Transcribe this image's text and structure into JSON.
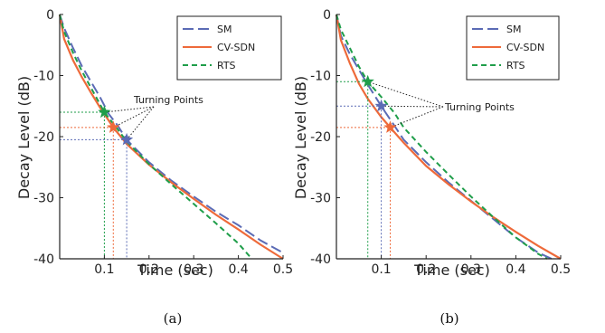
{
  "chart_data": [
    {
      "type": "line",
      "panel_label": "(a)",
      "xlabel": "Time (sec)",
      "ylabel": "Decay Level (dB)",
      "xlim": [
        0,
        0.5
      ],
      "ylim": [
        -40,
        0
      ],
      "xticks": [
        0.1,
        0.2,
        0.3,
        0.4,
        0.5
      ],
      "yticks": [
        0,
        -10,
        -20,
        -30,
        -40
      ],
      "legend": {
        "position": "top-right",
        "entries": [
          "SM",
          "CV-SDN",
          "RTS"
        ]
      },
      "annotation": "Turning Points",
      "colors": {
        "SM": "#5b6bb5",
        "CV-SDN": "#ee6a3a",
        "RTS": "#1f9e4a"
      },
      "series": [
        {
          "name": "SM",
          "style": "long-dash",
          "x": [
            0,
            0.01,
            0.03,
            0.05,
            0.07,
            0.09,
            0.11,
            0.13,
            0.15,
            0.17,
            0.2,
            0.25,
            0.3,
            0.35,
            0.4,
            0.45,
            0.5
          ],
          "y": [
            0,
            -2.2,
            -5.5,
            -8.5,
            -11,
            -13.5,
            -16.3,
            -18.2,
            -20.5,
            -22,
            -24.2,
            -27.2,
            -29.8,
            -32.3,
            -34.5,
            -37,
            -39
          ]
        },
        {
          "name": "CV-SDN",
          "style": "solid",
          "x": [
            0,
            0.01,
            0.03,
            0.05,
            0.07,
            0.09,
            0.12,
            0.15,
            0.2,
            0.25,
            0.3,
            0.35,
            0.4,
            0.45,
            0.5
          ],
          "y": [
            0,
            -4,
            -7.5,
            -10.3,
            -12.8,
            -15.2,
            -18.5,
            -21.2,
            -24.6,
            -27.5,
            -30.2,
            -32.8,
            -35.2,
            -37.7,
            -40
          ]
        },
        {
          "name": "RTS",
          "style": "dash",
          "x": [
            0,
            0.01,
            0.03,
            0.05,
            0.07,
            0.1,
            0.13,
            0.15,
            0.2,
            0.25,
            0.3,
            0.35,
            0.4,
            0.43
          ],
          "y": [
            0,
            -2.8,
            -6.3,
            -9.3,
            -12,
            -16,
            -18.8,
            -20.8,
            -24.5,
            -27.8,
            -31,
            -34.2,
            -37.5,
            -40
          ]
        }
      ],
      "turning_points": [
        {
          "series": "RTS",
          "x": 0.1,
          "y": -16
        },
        {
          "series": "CV-SDN",
          "x": 0.12,
          "y": -18.5
        },
        {
          "series": "SM",
          "x": 0.15,
          "y": -20.5
        }
      ]
    },
    {
      "type": "line",
      "panel_label": "(b)",
      "xlabel": "Time (sec)",
      "ylabel": "Decay Level (dB)",
      "xlim": [
        0,
        0.5
      ],
      "ylim": [
        -40,
        0
      ],
      "xticks": [
        0.1,
        0.2,
        0.3,
        0.4,
        0.5
      ],
      "yticks": [
        0,
        -10,
        -20,
        -30,
        -40
      ],
      "legend": {
        "position": "top-right",
        "entries": [
          "SM",
          "CV-SDN",
          "RTS"
        ]
      },
      "annotation": "Turning Points",
      "colors": {
        "SM": "#5b6bb5",
        "CV-SDN": "#ee6a3a",
        "RTS": "#1f9e4a"
      },
      "series": [
        {
          "name": "SM",
          "style": "long-dash",
          "x": [
            0,
            0.01,
            0.03,
            0.05,
            0.07,
            0.1,
            0.13,
            0.15,
            0.2,
            0.25,
            0.3,
            0.35,
            0.4,
            0.45,
            0.48
          ],
          "y": [
            0,
            -3.5,
            -6.5,
            -9,
            -11.5,
            -15,
            -18.3,
            -20.5,
            -24.2,
            -27.5,
            -30.5,
            -33.5,
            -36.5,
            -39,
            -40
          ]
        },
        {
          "name": "CV-SDN",
          "style": "solid",
          "x": [
            0,
            0.01,
            0.03,
            0.05,
            0.07,
            0.1,
            0.12,
            0.15,
            0.2,
            0.25,
            0.3,
            0.35,
            0.4,
            0.45,
            0.5
          ],
          "y": [
            0,
            -4.2,
            -8,
            -11.3,
            -13.8,
            -16.8,
            -18.5,
            -21,
            -24.8,
            -27.8,
            -30.6,
            -33.2,
            -35.6,
            -37.9,
            -40
          ]
        },
        {
          "name": "RTS",
          "style": "dash",
          "x": [
            0,
            0.01,
            0.03,
            0.05,
            0.07,
            0.1,
            0.13,
            0.15,
            0.2,
            0.25,
            0.3,
            0.35,
            0.4,
            0.45,
            0.47
          ],
          "y": [
            0,
            -2.5,
            -5.5,
            -8.5,
            -11,
            -13.5,
            -16.2,
            -18.5,
            -22.5,
            -26.2,
            -29.8,
            -33.2,
            -36.5,
            -39.2,
            -40
          ]
        }
      ],
      "turning_points": [
        {
          "series": "RTS",
          "x": 0.07,
          "y": -11
        },
        {
          "series": "SM",
          "x": 0.1,
          "y": -15
        },
        {
          "series": "CV-SDN",
          "x": 0.12,
          "y": -18.5
        }
      ]
    }
  ]
}
